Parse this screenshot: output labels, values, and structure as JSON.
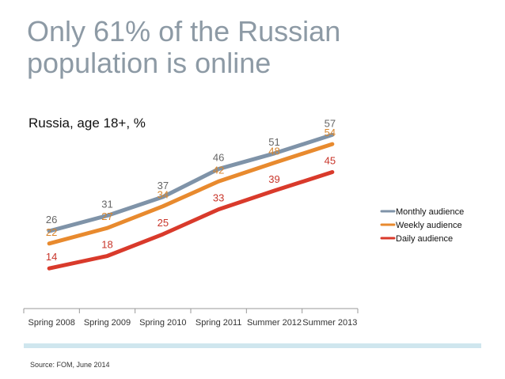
{
  "header": {
    "title": "Only 61% of the Russian population is online",
    "subtitle": "Russia, age 18+, %"
  },
  "footer": {
    "source": "Source: FOM, June 2014"
  },
  "chart_data": {
    "type": "line",
    "title": "Only 61% of the Russian population is online",
    "subtitle": "Russia, age 18+, %",
    "categories": [
      "Spring 2008",
      "Spring 2009",
      "Spring 2010",
      "Spring 2011",
      "Summer 2012",
      "Summer 2013"
    ],
    "series": [
      {
        "name": "Monthly audience",
        "color": "#7f93a8",
        "values": [
          26,
          31,
          37,
          46,
          51,
          57
        ]
      },
      {
        "name": "Weekly audience",
        "color": "#e88a2e",
        "values": [
          22,
          27,
          34,
          42,
          48,
          54
        ]
      },
      {
        "name": "Daily audience",
        "color": "#d93a2b",
        "values": [
          14,
          18,
          25,
          33,
          39,
          45
        ]
      }
    ],
    "label_colors": [
      "#666666",
      "#d9852b",
      "#c8352a"
    ],
    "xlabel": "",
    "ylabel": "",
    "ylim": [
      0,
      60
    ],
    "grid": false,
    "legend_position": "right"
  }
}
